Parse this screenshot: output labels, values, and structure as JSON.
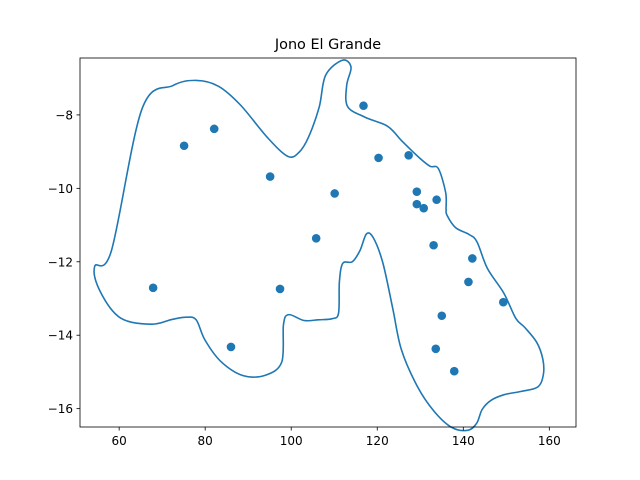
{
  "chart_data": {
    "type": "scatter",
    "title": "Jono El Grande",
    "xlabel": "",
    "ylabel": "",
    "xlim": [
      50.9,
      166.2
    ],
    "ylim": [
      -16.5,
      -6.45
    ],
    "grid": false,
    "x_ticks": [
      60,
      80,
      100,
      120,
      140,
      160
    ],
    "y_ticks": [
      -8,
      -10,
      -12,
      -14,
      -16
    ],
    "x_tick_labels": [
      "60",
      "80",
      "100",
      "120",
      "140",
      "160"
    ],
    "y_tick_labels": [
      "−8",
      "−10",
      "−12",
      "−14",
      "−16"
    ],
    "points": {
      "x": [
        75.1,
        82.1,
        67.9,
        86.0,
        95.1,
        97.4,
        105.8,
        110.1,
        116.8,
        120.3,
        127.3,
        129.2,
        129.2,
        130.8,
        133.1,
        133.8,
        133.6,
        135.0,
        137.9,
        141.2,
        142.1,
        149.3
      ],
      "y": [
        -8.84,
        -8.38,
        -12.71,
        -14.32,
        -9.68,
        -12.74,
        -11.36,
        -10.14,
        -7.75,
        -9.17,
        -9.1,
        -10.09,
        -10.43,
        -10.54,
        -11.55,
        -10.31,
        -14.37,
        -13.47,
        -14.98,
        -12.55,
        -11.91,
        -13.1
      ]
    },
    "outline": {
      "x": [
        65.3,
        72.5,
        78.0,
        83.1,
        88.2,
        94.5,
        99.2,
        101.8,
        104.0,
        106.5,
        108.0,
        111.9,
        113.9,
        112.9,
        113.1,
        117.1,
        122.4,
        125.8,
        129.8,
        132.3,
        134.2,
        135.9,
        136.0,
        136.2,
        138.2,
        141.4,
        143.2,
        145.6,
        149.4,
        152.2,
        154.3,
        157.1,
        158.5,
        158.6,
        157.3,
        153.5,
        149.5,
        146.5,
        144.4,
        143.1,
        141.0,
        137.3,
        133.2,
        129.3,
        125.6,
        123.6,
        121.3,
        119.1,
        117.5,
        116.0,
        114.2,
        112.0,
        111.2,
        111.0,
        109.5,
        106.3,
        103.0,
        99.4,
        98.2,
        97.8,
        94.0,
        88.8,
        83.6,
        79.9,
        77.9,
        75.6,
        72.3,
        67.5,
        60.3,
        55.6,
        54.3,
        58.2,
        65.3
      ],
      "y": [
        -7.84,
        -7.2,
        -7.06,
        -7.22,
        -7.73,
        -8.62,
        -9.13,
        -9.02,
        -8.61,
        -7.79,
        -6.92,
        -6.51,
        -6.7,
        -7.19,
        -7.77,
        -8.06,
        -8.31,
        -8.72,
        -9.17,
        -9.4,
        -9.46,
        -10.11,
        -10.56,
        -10.73,
        -11.07,
        -11.26,
        -11.46,
        -12.18,
        -12.85,
        -13.54,
        -13.79,
        -14.2,
        -14.66,
        -15.08,
        -15.41,
        -15.53,
        -15.62,
        -15.77,
        -16.02,
        -16.4,
        -16.59,
        -16.51,
        -16.07,
        -15.39,
        -14.39,
        -13.27,
        -12.03,
        -11.35,
        -11.24,
        -11.69,
        -12.0,
        -12.04,
        -12.54,
        -13.4,
        -13.55,
        -13.58,
        -13.6,
        -13.44,
        -13.71,
        -14.73,
        -15.09,
        -15.1,
        -14.71,
        -14.12,
        -13.58,
        -13.51,
        -13.57,
        -13.7,
        -13.53,
        -12.81,
        -12.13,
        -11.7,
        -7.84
      ]
    }
  },
  "colors": {
    "series": "#1f77b4",
    "axes": "#000000",
    "background": "#ffffff"
  }
}
